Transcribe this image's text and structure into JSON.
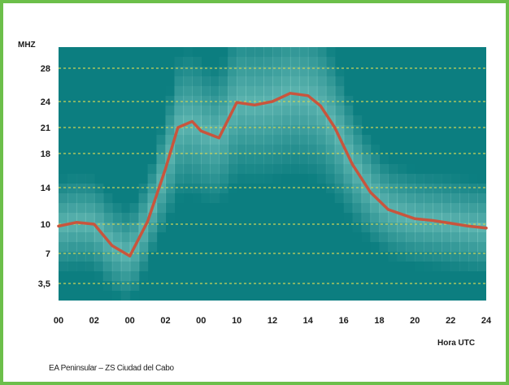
{
  "chart_data": {
    "type": "line",
    "title": "",
    "ylabel": "MHZ",
    "xlabel": "Hora UTC",
    "caption": "EA Peninsular – ZS Ciudad del Cabo",
    "y_ticks": [
      "3,5",
      "7",
      "10",
      "14",
      "18",
      "21",
      "24",
      "28"
    ],
    "x_ticks": [
      "00",
      "02",
      "00",
      "02",
      "00",
      "10",
      "12",
      "14",
      "16",
      "18",
      "20",
      "22",
      "24"
    ],
    "x_range": [
      0,
      24
    ],
    "grid": true,
    "series": [
      {
        "values_x": [
          0,
          1,
          2,
          3,
          4,
          5,
          6,
          6.7,
          7.5,
          8,
          9,
          10,
          11,
          12,
          13,
          14,
          14.7,
          15.5,
          16.5,
          17.5,
          18.5,
          20,
          21,
          22,
          23,
          24
        ],
        "values_y": [
          9.8,
          10.2,
          10.0,
          7.8,
          6.7,
          10.3,
          16.2,
          21.0,
          21.7,
          20.6,
          19.8,
          23.9,
          23.6,
          24.0,
          25.0,
          24.7,
          23.5,
          21.0,
          16.7,
          13.5,
          11.6,
          10.6,
          10.4,
          10.1,
          9.8,
          9.6
        ]
      }
    ],
    "colors": {
      "background": "#0c7e80",
      "line": "#c8553d",
      "grid": "#c9d35a",
      "frame": "#6cbf4a"
    }
  }
}
